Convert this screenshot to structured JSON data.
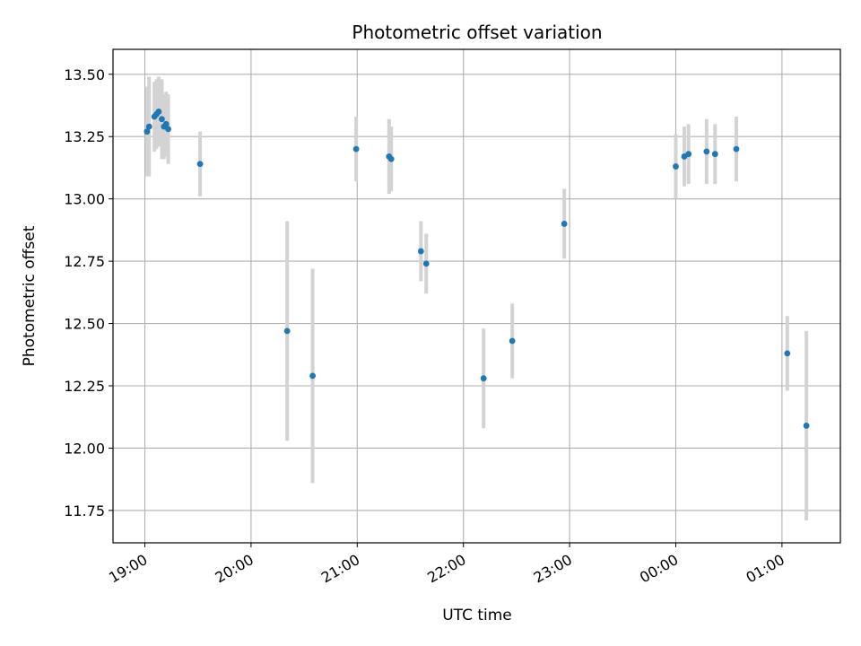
{
  "chart_data": {
    "type": "scatter",
    "title": "Photometric offset variation",
    "xlabel": "UTC time",
    "ylabel": "Photometric offset",
    "x_unit": "hours since 19:00 UTC",
    "x_ticks": [
      {
        "value": 0,
        "label": "19:00"
      },
      {
        "value": 1,
        "label": "20:00"
      },
      {
        "value": 2,
        "label": "21:00"
      },
      {
        "value": 3,
        "label": "22:00"
      },
      {
        "value": 4,
        "label": "23:00"
      },
      {
        "value": 5,
        "label": "00:00"
      },
      {
        "value": 6,
        "label": "01:00"
      }
    ],
    "y_ticks": [
      {
        "value": 11.75,
        "label": "11.75"
      },
      {
        "value": 12.0,
        "label": "12.00"
      },
      {
        "value": 12.25,
        "label": "12.25"
      },
      {
        "value": 12.5,
        "label": "12.50"
      },
      {
        "value": 12.75,
        "label": "12.75"
      },
      {
        "value": 13.0,
        "label": "13.00"
      },
      {
        "value": 13.25,
        "label": "13.25"
      },
      {
        "value": 13.5,
        "label": "13.50"
      }
    ],
    "xlim": [
      -0.3,
      6.55
    ],
    "ylim": [
      11.62,
      13.6
    ],
    "grid": true,
    "colors": {
      "points": "#1f77b4",
      "errorbars": "#d3d3d3",
      "grid": "#b0b0b0"
    },
    "series": [
      {
        "points": [
          {
            "x": 0.02,
            "y": 13.27,
            "err": 0.18
          },
          {
            "x": 0.04,
            "y": 13.29,
            "err": 0.2
          },
          {
            "x": 0.09,
            "y": 13.33,
            "err": 0.14
          },
          {
            "x": 0.11,
            "y": 13.34,
            "err": 0.14
          },
          {
            "x": 0.13,
            "y": 13.35,
            "err": 0.14
          },
          {
            "x": 0.16,
            "y": 13.32,
            "err": 0.16
          },
          {
            "x": 0.18,
            "y": 13.29,
            "err": 0.13
          },
          {
            "x": 0.2,
            "y": 13.3,
            "err": 0.13
          },
          {
            "x": 0.22,
            "y": 13.28,
            "err": 0.14
          },
          {
            "x": 0.52,
            "y": 13.14,
            "err": 0.13
          },
          {
            "x": 1.34,
            "y": 12.47,
            "err": 0.44
          },
          {
            "x": 1.58,
            "y": 12.29,
            "err": 0.43
          },
          {
            "x": 1.99,
            "y": 13.2,
            "err": 0.13
          },
          {
            "x": 2.3,
            "y": 13.17,
            "err": 0.15
          },
          {
            "x": 2.32,
            "y": 13.16,
            "err": 0.13
          },
          {
            "x": 2.6,
            "y": 12.79,
            "err": 0.12
          },
          {
            "x": 2.65,
            "y": 12.74,
            "err": 0.12
          },
          {
            "x": 3.19,
            "y": 12.28,
            "err": 0.2
          },
          {
            "x": 3.46,
            "y": 12.43,
            "err": 0.15
          },
          {
            "x": 3.95,
            "y": 12.9,
            "err": 0.14
          },
          {
            "x": 5.0,
            "y": 13.13,
            "err": 0.13
          },
          {
            "x": 5.08,
            "y": 13.17,
            "err": 0.12
          },
          {
            "x": 5.12,
            "y": 13.18,
            "err": 0.12
          },
          {
            "x": 5.29,
            "y": 13.19,
            "err": 0.13
          },
          {
            "x": 5.37,
            "y": 13.18,
            "err": 0.12
          },
          {
            "x": 5.57,
            "y": 13.2,
            "err": 0.13
          },
          {
            "x": 6.05,
            "y": 12.38,
            "err": 0.15
          },
          {
            "x": 6.23,
            "y": 12.09,
            "err": 0.38
          }
        ]
      }
    ]
  }
}
